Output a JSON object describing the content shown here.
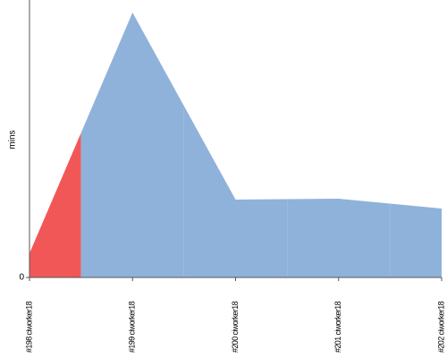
{
  "chart_data": {
    "type": "area",
    "y_label": "mins",
    "categories": [
      "#198 ciworker18",
      "#199 ciworker18",
      "#200 ciworker18",
      "#201 ciworker18",
      "#202 ciworker18"
    ],
    "values": [
      2.7,
      29.6,
      8.7,
      8.8,
      7.7
    ],
    "colors": [
      "#f25757",
      "#8fb2da",
      "#8fb2da",
      "#8fb2da",
      "#8fb2da"
    ],
    "ylim": [
      0,
      31
    ],
    "yticks": [
      0
    ]
  }
}
